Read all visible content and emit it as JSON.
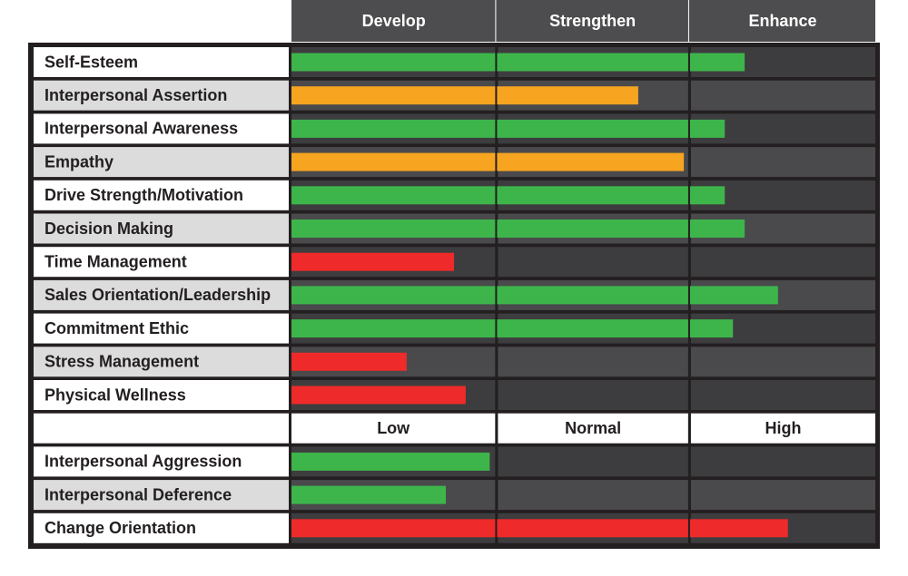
{
  "chart_data": {
    "type": "bar",
    "xlim": [
      0,
      100
    ],
    "sections": [
      {
        "zones": [
          {
            "label": "Develop",
            "from": 0,
            "to": 35
          },
          {
            "label": "Strengthen",
            "from": 35,
            "to": 68
          },
          {
            "label": "Enhance",
            "from": 68,
            "to": 100
          }
        ],
        "categories": [
          "Self-Esteem",
          "Interpersonal Assertion",
          "Interpersonal Awareness",
          "Empathy",
          "Drive Strength/Motivation",
          "Decision Making",
          "Time Management",
          "Sales Orientation/Leadership",
          "Commitment Ethic",
          "Stress Management",
          "Physical Wellness"
        ],
        "values": [
          77.5,
          59.3,
          74.1,
          67.1,
          74.1,
          77.5,
          27.8,
          83.2,
          75.5,
          19.7,
          29.8
        ],
        "colors": [
          "#3db54a",
          "#f7a521",
          "#3db54a",
          "#f7a521",
          "#3db54a",
          "#3db54a",
          "#ee2a2a",
          "#3db54a",
          "#3db54a",
          "#ee2a2a",
          "#ee2a2a"
        ]
      },
      {
        "zones": [
          {
            "label": "Low",
            "from": 0,
            "to": 35
          },
          {
            "label": "Normal",
            "from": 35,
            "to": 68
          },
          {
            "label": "High",
            "from": 68,
            "to": 100
          }
        ],
        "categories": [
          "Interpersonal Aggression",
          "Interpersonal Deference",
          "Change Orientation"
        ],
        "values": [
          33.9,
          26.4,
          84.9
        ],
        "colors": [
          "#3db54a",
          "#3db54a",
          "#ee2a2a"
        ]
      }
    ]
  }
}
